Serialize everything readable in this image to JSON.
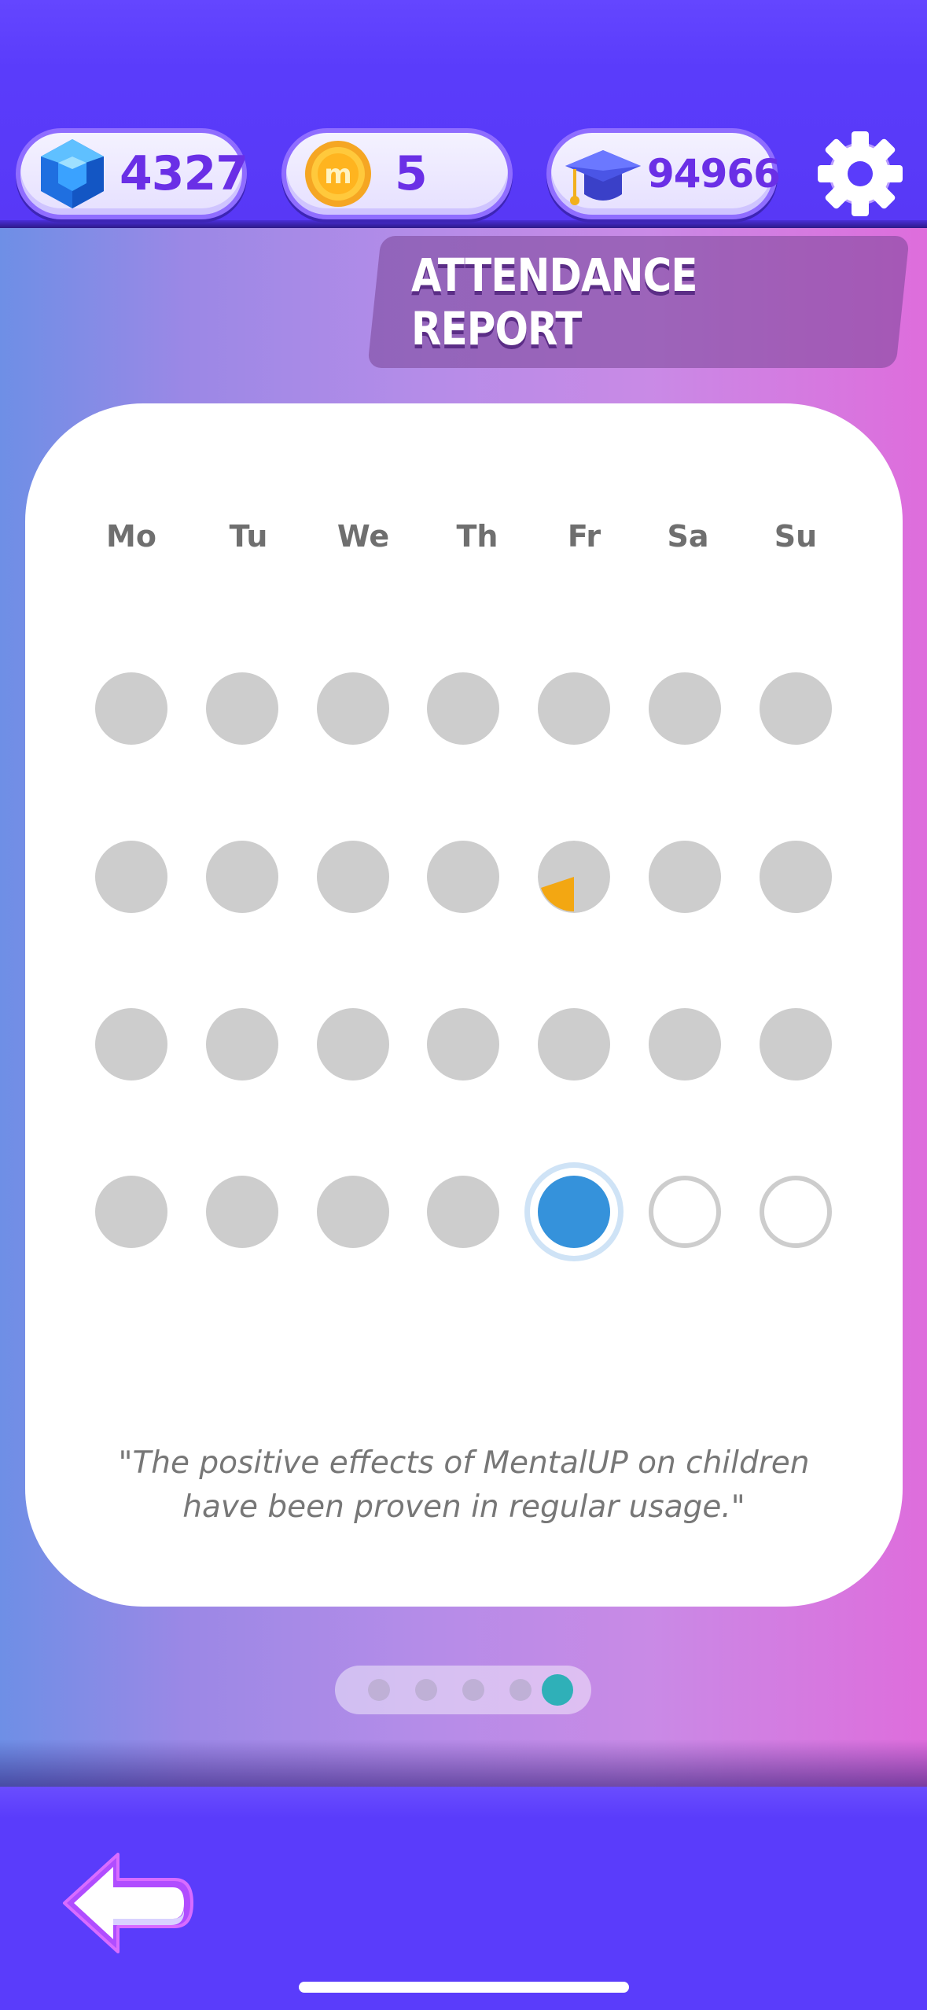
{
  "currency": {
    "gems": "4327",
    "coins": "5",
    "score": "94966"
  },
  "title": "ATTENDANCE REPORT",
  "weekdays": [
    "Mo",
    "Tu",
    "We",
    "Th",
    "Fr",
    "Sa",
    "Su"
  ],
  "attendance_rows": [
    [
      "missed",
      "missed",
      "missed",
      "missed",
      "missed",
      "missed",
      "missed"
    ],
    [
      "missed",
      "missed",
      "missed",
      "missed",
      "partial-25%",
      "missed",
      "missed"
    ],
    [
      "missed",
      "missed",
      "missed",
      "missed",
      "missed",
      "missed",
      "missed"
    ],
    [
      "missed",
      "missed",
      "missed",
      "missed",
      "today",
      "upcoming",
      "upcoming"
    ]
  ],
  "quote": {
    "line1": "\"The positive effects of MentalUP on children",
    "line2": "have been proven in regular usage.\""
  },
  "pager": {
    "total_pages": 5,
    "active_page": 5
  },
  "colors": {
    "bar_background": "#5a3cfb",
    "currency_text": "#6a2fe6",
    "missed_dot": "#cdcdcd",
    "partial_fill": "#f3a712",
    "today_dot": "#3592db",
    "active_pager_dot": "#2fb0b8"
  },
  "icons": [
    "gem-icon",
    "coin-icon",
    "graduation-cap-icon",
    "gear-icon",
    "back-arrow-icon"
  ]
}
